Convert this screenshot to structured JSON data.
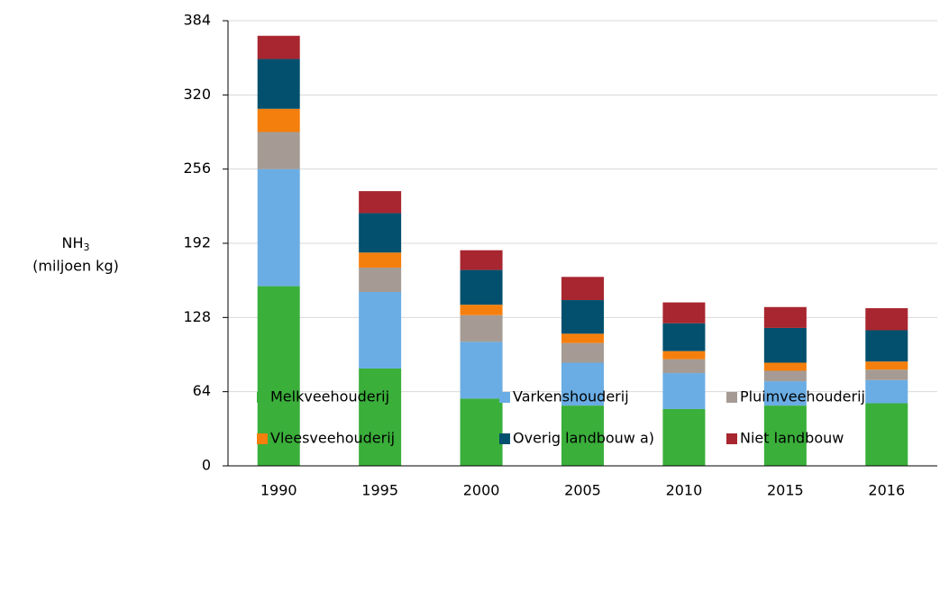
{
  "chart_data": {
    "type": "stacked_bar",
    "ylabel": {
      "text": "NH",
      "subscript": "3",
      "unit": "(miljoen kg)"
    },
    "categories": [
      "1990",
      "1995",
      "2000",
      "2005",
      "2010",
      "2015",
      "2016"
    ],
    "series": [
      {
        "name": "Melkveehouderij",
        "color": "#3aaf3a",
        "values": [
          155,
          84,
          58,
          52,
          49,
          52,
          54
        ]
      },
      {
        "name": "Varkenshouderij",
        "color": "#6aade4",
        "values": [
          101,
          66,
          49,
          37,
          31,
          21,
          20
        ]
      },
      {
        "name": "Pluimveehouderij",
        "color": "#a59b94",
        "values": [
          32,
          21,
          23,
          17,
          12,
          9,
          9
        ]
      },
      {
        "name": "Vleesveehouderij",
        "color": "#f57f0c",
        "values": [
          20,
          13,
          9,
          8,
          7,
          7,
          7
        ]
      },
      {
        "name": "Overig landbouw a)",
        "color": "#02506e",
        "values": [
          43,
          34,
          30,
          29,
          24,
          30,
          27
        ]
      },
      {
        "name": "Niet landbouw",
        "color": "#a8262f",
        "values": [
          20,
          19,
          17,
          20,
          18,
          18,
          19
        ]
      }
    ],
    "ylim": [
      0,
      384
    ],
    "yticks": [
      0,
      64,
      128,
      192,
      256,
      320,
      384
    ],
    "grid": true
  }
}
